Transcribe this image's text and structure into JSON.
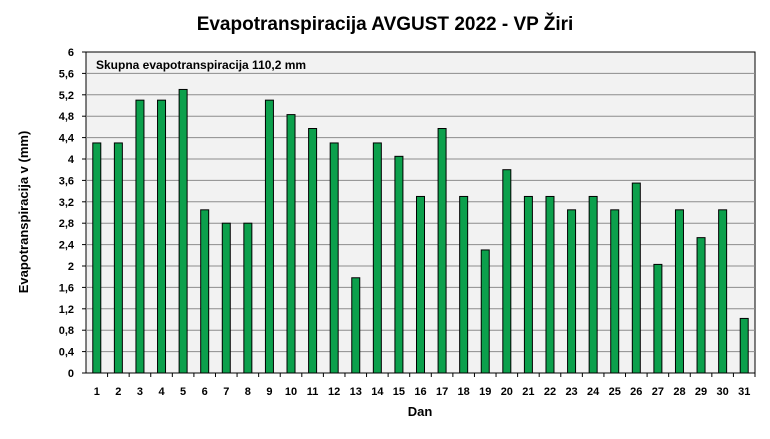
{
  "chart_data": {
    "type": "bar",
    "title": "Evapotranspiracija  AVGUST 2022 - VP Žiri",
    "xlabel": "Dan",
    "ylabel": "Evapotranspiracija v  (mm)",
    "annotation": "Skupna evapotranspiracija  110,2 mm",
    "categories": [
      "1",
      "2",
      "3",
      "4",
      "5",
      "6",
      "7",
      "8",
      "9",
      "10",
      "11",
      "12",
      "13",
      "14",
      "15",
      "16",
      "17",
      "18",
      "19",
      "20",
      "21",
      "22",
      "23",
      "24",
      "25",
      "26",
      "27",
      "28",
      "29",
      "30",
      "31"
    ],
    "values": [
      4.3,
      4.3,
      5.1,
      5.1,
      5.3,
      3.05,
      2.8,
      2.8,
      5.1,
      4.83,
      4.57,
      4.3,
      1.78,
      4.3,
      4.05,
      3.3,
      4.57,
      3.3,
      2.3,
      3.8,
      3.3,
      3.3,
      3.05,
      3.3,
      3.05,
      3.55,
      2.03,
      3.05,
      2.53,
      3.05,
      1.02
    ],
    "ylim": [
      0,
      6
    ],
    "yticks": [
      "0",
      "0,4",
      "0,8",
      "1,2",
      "1,6",
      "2",
      "2,4",
      "2,8",
      "3,2",
      "3,6",
      "4",
      "4,4",
      "4,8",
      "5,2",
      "5,6",
      "6"
    ],
    "grid": true,
    "colors": {
      "bar_fill": "#0ca04c",
      "bar_stroke": "#000000",
      "plot_bg": "#f2f2f2",
      "gridline": "#8c8c8c"
    }
  }
}
